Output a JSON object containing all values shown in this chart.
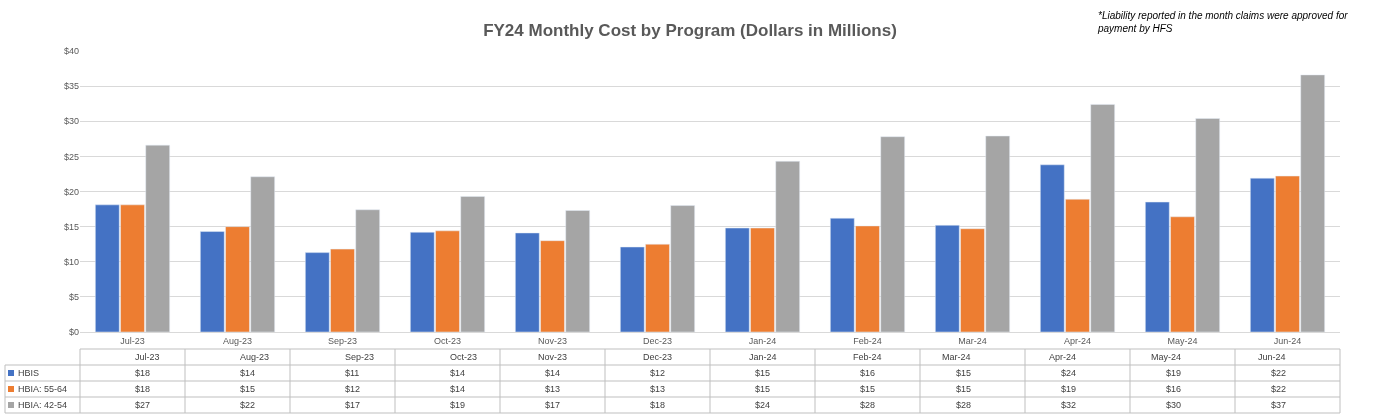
{
  "chart_data": {
    "type": "bar",
    "title": "FY24 Monthly Cost by Program (Dollars in Millions)",
    "annotations": [
      "*Liability reported in the month claims were approved for payment by HFS"
    ],
    "categories": [
      "Jul-23",
      "Aug-23",
      "Sep-23",
      "Oct-23",
      "Nov-23",
      "Dec-23",
      "Jan-24",
      "Feb-24",
      "Mar-24",
      "Apr-24",
      "May-24",
      "Jun-24"
    ],
    "series": [
      {
        "name": "HBIS",
        "color": "#4472c4",
        "values": [
          18.1,
          14.3,
          11.3,
          14.2,
          14.1,
          12.1,
          14.8,
          16.2,
          15.2,
          23.8,
          18.5,
          21.9
        ],
        "value_labels": [
          "$18",
          "$14",
          "$11",
          "$14",
          "$14",
          "$12",
          "$15",
          "$16",
          "$15",
          "$24",
          "$19",
          "$22"
        ]
      },
      {
        "name": "HBIA: 55-64",
        "color": "#ed7d31",
        "values": [
          18.1,
          15.0,
          11.8,
          14.4,
          13.0,
          12.5,
          14.8,
          15.1,
          14.7,
          18.9,
          16.4,
          22.2
        ],
        "value_labels": [
          "$18",
          "$15",
          "$12",
          "$14",
          "$13",
          "$13",
          "$15",
          "$15",
          "$15",
          "$19",
          "$16",
          "$22"
        ]
      },
      {
        "name": "HBIA: 42-54",
        "color": "#a5a5a5",
        "values": [
          26.6,
          22.1,
          17.4,
          19.3,
          17.3,
          18.0,
          24.3,
          27.8,
          27.9,
          32.4,
          30.4,
          36.6
        ],
        "value_labels": [
          "$27",
          "$22",
          "$17",
          "$19",
          "$17",
          "$18",
          "$24",
          "$28",
          "$28",
          "$32",
          "$30",
          "$37"
        ]
      }
    ],
    "ylim": [
      0,
      40
    ],
    "yticks": [
      {
        "value": 0,
        "label": "$0"
      },
      {
        "value": 5,
        "label": "$5"
      },
      {
        "value": 10,
        "label": "$10"
      },
      {
        "value": 15,
        "label": "$15"
      },
      {
        "value": 20,
        "label": "$20"
      },
      {
        "value": 25,
        "label": "$25"
      },
      {
        "value": 30,
        "label": "$30"
      },
      {
        "value": 35,
        "label": "$35"
      },
      {
        "value": 40,
        "label": "$40"
      }
    ],
    "grid": "y",
    "legend": "bottom"
  }
}
